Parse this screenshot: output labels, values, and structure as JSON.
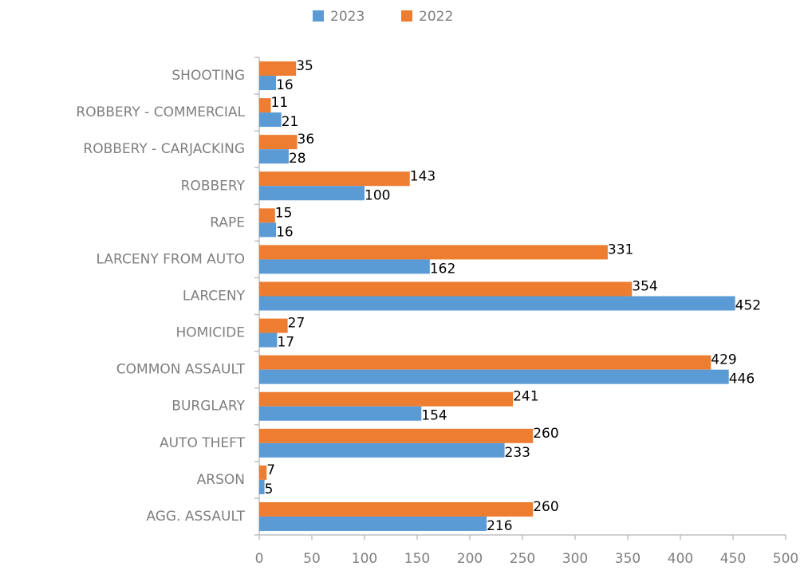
{
  "chart_data": {
    "type": "barh",
    "categories": [
      "SHOOTING",
      "ROBBERY - COMMERCIAL",
      "ROBBERY - CARJACKING",
      "ROBBERY",
      "RAPE",
      "LARCENY FROM AUTO",
      "LARCENY",
      "HOMICIDE",
      "COMMON ASSAULT",
      "BURGLARY",
      "AUTO THEFT",
      "ARSON",
      "AGG. ASSAULT"
    ],
    "series": [
      {
        "name": "2023",
        "color": "#5b9bd5",
        "values": [
          16,
          21,
          28,
          100,
          16,
          162,
          452,
          17,
          446,
          154,
          233,
          5,
          216
        ]
      },
      {
        "name": "2022",
        "color": "#ed7d31",
        "values": [
          35,
          11,
          36,
          143,
          15,
          331,
          354,
          27,
          429,
          241,
          260,
          7,
          260
        ]
      }
    ],
    "xlim": [
      0,
      500
    ],
    "xticks": [
      0,
      50,
      100,
      150,
      200,
      250,
      300,
      350,
      400,
      450,
      500
    ],
    "legend": "top"
  }
}
